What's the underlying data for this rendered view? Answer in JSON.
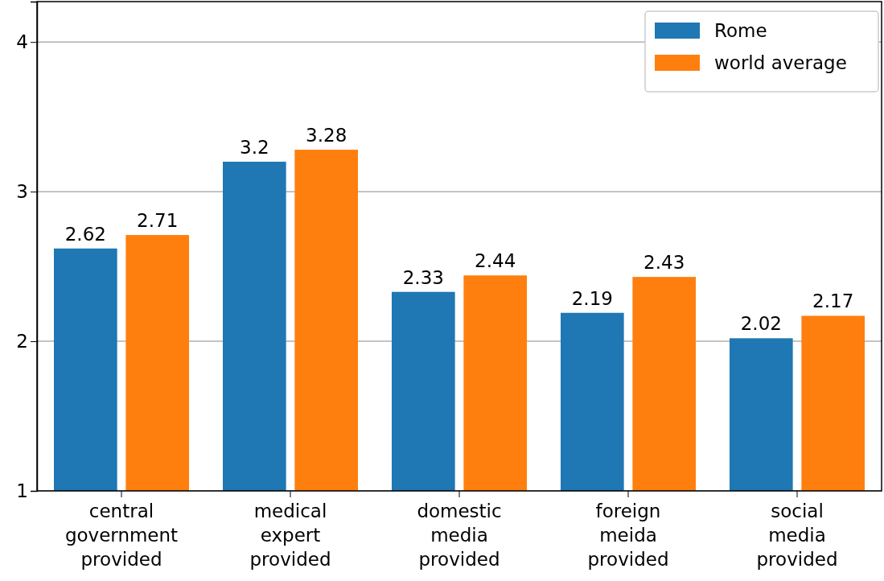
{
  "chart_data": {
    "type": "bar",
    "categories": [
      "central government provided",
      "medical expert provided",
      "domestic media provided",
      "foreign meida provided",
      "social media provided"
    ],
    "series": [
      {
        "name": "Rome",
        "color": "#1f77b4",
        "values": [
          2.62,
          3.2,
          2.33,
          2.19,
          2.02
        ]
      },
      {
        "name": "world average",
        "color": "#ff7f0e",
        "values": [
          2.71,
          3.28,
          2.44,
          2.43,
          2.17
        ]
      }
    ],
    "ylim": [
      1,
      4.27
    ],
    "yticks": [
      1,
      2,
      3,
      4
    ],
    "grid": "y",
    "legend": "top right",
    "data_labels": true
  }
}
